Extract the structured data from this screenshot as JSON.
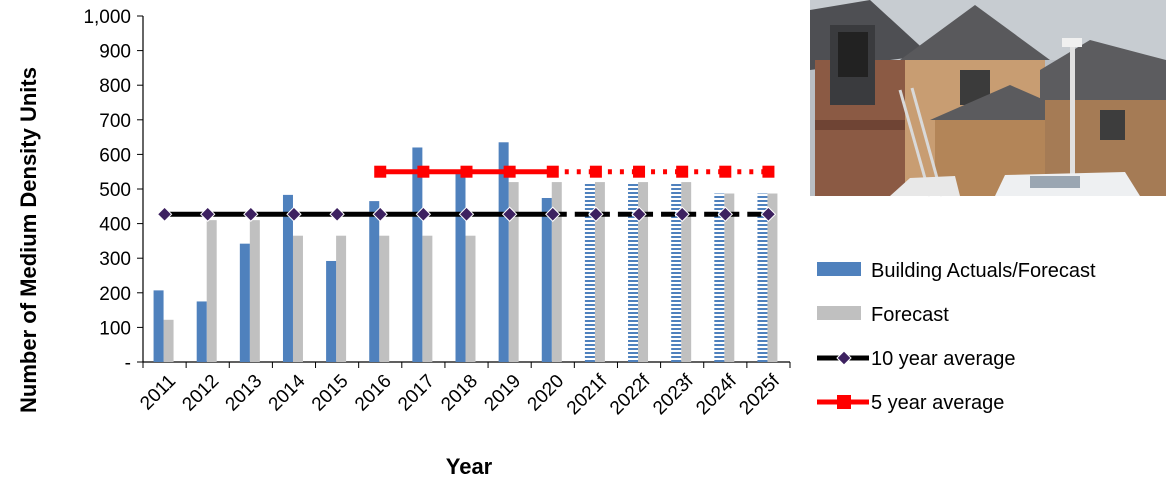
{
  "chart_data": {
    "type": "bar",
    "xlabel": "Year",
    "ylabel": "Number of Medium Density Units",
    "ylim": [
      0,
      1000
    ],
    "yticks": [
      0,
      100,
      200,
      300,
      400,
      500,
      600,
      700,
      800,
      900,
      1000
    ],
    "ytick_labels": [
      "-",
      "100",
      "200",
      "300",
      "400",
      "500",
      "600",
      "700",
      "800",
      "900",
      "1,000"
    ],
    "categories": [
      "2011",
      "2012",
      "2013",
      "2014",
      "2015",
      "2016",
      "2017",
      "2018",
      "2019",
      "2020",
      "2021f",
      "2022f",
      "2023f",
      "2024f",
      "2025f"
    ],
    "series": [
      {
        "name": "Building Actuals/Forecast",
        "kind": "bar",
        "color": "#4f81bd",
        "values": [
          207,
          175,
          342,
          483,
          292,
          465,
          620,
          550,
          635,
          474,
          520,
          520,
          520,
          487,
          487
        ],
        "hatched_from_index": 10
      },
      {
        "name": "Forecast",
        "kind": "bar",
        "color": "#c0c0c0",
        "values": [
          122,
          410,
          410,
          365,
          365,
          365,
          365,
          365,
          520,
          520,
          520,
          520,
          520,
          487,
          487
        ]
      },
      {
        "name": "10 year average",
        "kind": "line",
        "color": "#000000",
        "marker": "diamond",
        "marker_color": "#3d2160",
        "values": [
          427,
          427,
          427,
          427,
          427,
          427,
          427,
          427,
          427,
          427,
          427,
          427,
          427,
          427,
          427
        ],
        "dotted_from_index": 10
      },
      {
        "name": "5 year average",
        "kind": "line",
        "color": "#ff0000",
        "marker": "square",
        "values": [
          null,
          null,
          null,
          null,
          null,
          550,
          550,
          550,
          550,
          550,
          550,
          550,
          550,
          550,
          550
        ],
        "dotted_from_index": 10
      }
    ],
    "legend_position": "right",
    "grid": false
  },
  "photo": {
    "icon": "house-construction-photo",
    "sky": "#b7bcc2",
    "roof": "#5a5a5c",
    "wall": "#c9a27a",
    "brick": "#7a4a3c"
  }
}
